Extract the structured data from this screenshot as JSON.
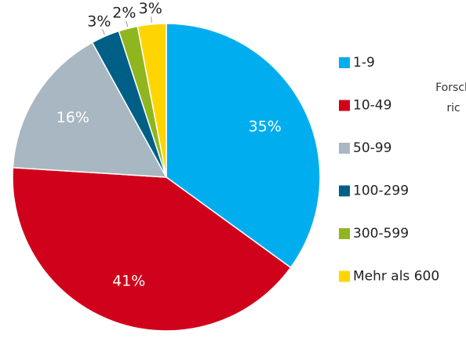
{
  "chart_data": {
    "type": "pie",
    "categories": [
      "1-9",
      "10-49",
      "50-99",
      "100-299",
      "300-599",
      "Mehr als 600"
    ],
    "values": [
      35,
      41,
      16,
      3,
      2,
      3
    ],
    "value_labels": [
      "35%",
      "41%",
      "16%",
      "3%",
      "2%",
      "3%"
    ],
    "colors": [
      "#00aeef",
      "#d0021b",
      "#a8b7c1",
      "#005f87",
      "#8fb61f",
      "#ffd500"
    ],
    "legend": "right",
    "annotations": [
      "Forsch",
      "ric"
    ]
  }
}
